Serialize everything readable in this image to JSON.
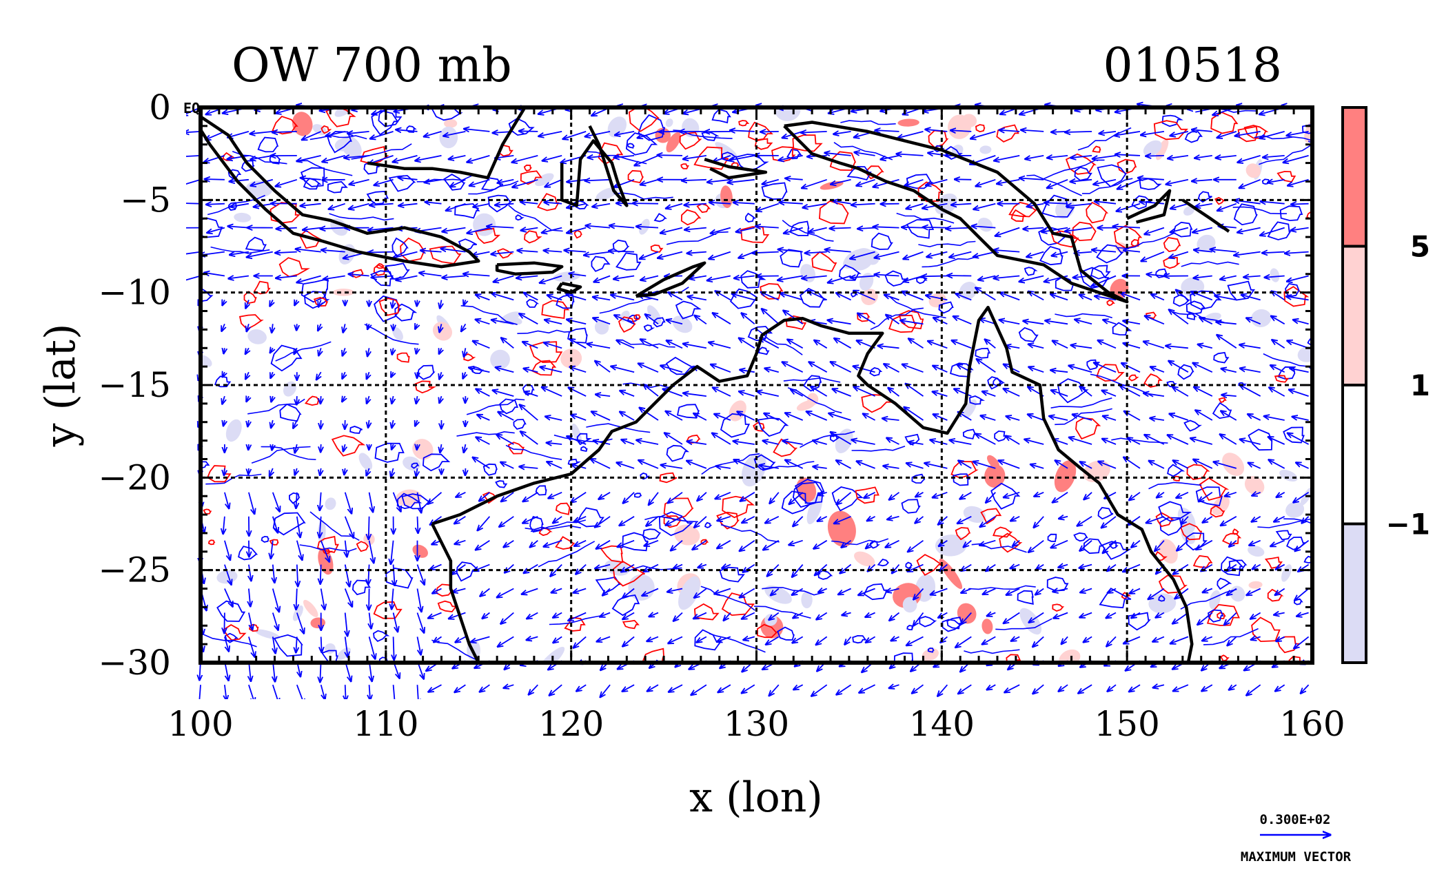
{
  "chart_data": {
    "type": "heatmap",
    "title": "OW 700 mb",
    "date_label": "010518",
    "corner_mark": "EQ",
    "xlabel": "x (lon)",
    "ylabel": "y (lat)",
    "xlim": [
      100,
      160
    ],
    "ylim": [
      -30,
      0
    ],
    "x_ticks": [
      100,
      110,
      120,
      130,
      140,
      150,
      160
    ],
    "y_ticks": [
      0,
      -5,
      -10,
      -15,
      -20,
      -25,
      -30
    ],
    "grid": true,
    "colorbar": {
      "levels": [
        -1,
        1,
        5
      ],
      "labels": [
        "5",
        "1",
        "−1"
      ],
      "colors": [
        "#ff8080",
        "#ffd2d2",
        "#ffffff",
        "#dcdcf5"
      ]
    },
    "contour_colors": {
      "positive": "#ff0000",
      "negative": "#0000ff",
      "coastline": "#000000",
      "vectors": "#0000ff"
    },
    "reference_vector": {
      "value_label": "0.300E+02",
      "caption": "MAXIMUM VECTOR"
    },
    "coastlines": [
      [
        [
          100,
          -0.5
        ],
        [
          101.5,
          -1.5
        ],
        [
          102.5,
          -3
        ],
        [
          104,
          -4.5
        ],
        [
          105.5,
          -5.8
        ],
        [
          107,
          -6.1
        ],
        [
          109,
          -6.8
        ],
        [
          111,
          -6.5
        ],
        [
          113,
          -7
        ],
        [
          114.5,
          -7.8
        ],
        [
          115,
          -8.3
        ],
        [
          113,
          -8.6
        ],
        [
          111,
          -8.3
        ],
        [
          108.5,
          -7.8
        ],
        [
          106.5,
          -7.2
        ],
        [
          105,
          -6.8
        ],
        [
          103.5,
          -5.5
        ],
        [
          102,
          -4
        ],
        [
          100.5,
          -2
        ],
        [
          100,
          -1.2
        ]
      ],
      [
        [
          116,
          -8.5
        ],
        [
          118,
          -8.4
        ],
        [
          119.5,
          -8.6
        ],
        [
          119,
          -8.9
        ],
        [
          117,
          -9
        ],
        [
          116,
          -8.8
        ],
        [
          116,
          -8.5
        ]
      ],
      [
        [
          119.5,
          -9.5
        ],
        [
          120.5,
          -9.7
        ],
        [
          120,
          -10
        ],
        [
          119.3,
          -9.8
        ],
        [
          119.5,
          -9.5
        ]
      ],
      [
        [
          123.5,
          -10.2
        ],
        [
          125,
          -9.3
        ],
        [
          126.6,
          -8.6
        ],
        [
          127.2,
          -8.4
        ],
        [
          126,
          -9.5
        ],
        [
          124.5,
          -10.1
        ],
        [
          123.5,
          -10.2
        ]
      ],
      [
        [
          109,
          -3
        ],
        [
          111,
          -3.3
        ],
        [
          112.5,
          -3.3
        ],
        [
          114,
          -3.5
        ],
        [
          115.5,
          -3.8
        ],
        [
          116.3,
          -2
        ],
        [
          117.5,
          0
        ]
      ],
      [
        [
          121,
          -1
        ],
        [
          121.5,
          -2
        ],
        [
          122.3,
          -4.5
        ],
        [
          123,
          -5.3
        ],
        [
          122.5,
          -4
        ],
        [
          122.2,
          -3
        ],
        [
          121.2,
          -1.8
        ],
        [
          120.5,
          -2.8
        ],
        [
          120.3,
          -5.3
        ],
        [
          119.5,
          -5
        ],
        [
          119.5,
          -3
        ]
      ],
      [
        [
          127.2,
          -2.8
        ],
        [
          128.5,
          -3.2
        ],
        [
          130.5,
          -3.5
        ],
        [
          128.5,
          -3.8
        ],
        [
          127.5,
          -3.3
        ]
      ],
      [
        [
          131.5,
          -1
        ],
        [
          133,
          -2.5
        ],
        [
          134.5,
          -3
        ],
        [
          135.5,
          -3.3
        ],
        [
          137,
          -4
        ],
        [
          138.5,
          -4.5
        ],
        [
          140,
          -5.5
        ],
        [
          141,
          -6
        ],
        [
          142,
          -7
        ],
        [
          143,
          -8
        ],
        [
          144,
          -8.2
        ],
        [
          145.5,
          -8.5
        ],
        [
          147,
          -9.5
        ],
        [
          148.5,
          -10
        ],
        [
          150,
          -10.5
        ],
        [
          149,
          -10
        ],
        [
          147.5,
          -8.8
        ],
        [
          147,
          -7
        ],
        [
          146,
          -6.8
        ],
        [
          145,
          -5.2
        ],
        [
          143,
          -3.5
        ],
        [
          141,
          -2.7
        ],
        [
          140,
          -2.3
        ],
        [
          138,
          -1.8
        ],
        [
          136,
          -1.3
        ],
        [
          133,
          -0.8
        ],
        [
          131.5,
          -1
        ]
      ],
      [
        [
          150,
          -6
        ],
        [
          151.5,
          -5.3
        ],
        [
          152.3,
          -4.5
        ],
        [
          152,
          -5.8
        ],
        [
          150.5,
          -6.2
        ]
      ],
      [
        [
          153,
          -5
        ],
        [
          154.5,
          -6
        ],
        [
          155.5,
          -6.7
        ]
      ],
      [
        [
          112.5,
          -22.5
        ],
        [
          113.5,
          -24.5
        ],
        [
          113.5,
          -26
        ],
        [
          114,
          -27.5
        ],
        [
          114.5,
          -29
        ],
        [
          115,
          -30
        ]
      ],
      [
        [
          112.5,
          -22.5
        ],
        [
          114,
          -22
        ],
        [
          116,
          -21
        ],
        [
          118,
          -20.3
        ],
        [
          120,
          -19.8
        ],
        [
          121.5,
          -18.5
        ],
        [
          122.2,
          -17.5
        ],
        [
          123.5,
          -17
        ],
        [
          124.5,
          -16
        ],
        [
          125.5,
          -15
        ],
        [
          126.8,
          -14
        ],
        [
          128,
          -14.8
        ],
        [
          129.5,
          -14.5
        ],
        [
          130,
          -13.3
        ],
        [
          130.3,
          -12.3
        ],
        [
          131.5,
          -11.5
        ],
        [
          132.5,
          -11.4
        ],
        [
          133.5,
          -11.8
        ],
        [
          135,
          -12.2
        ],
        [
          136.8,
          -12.2
        ],
        [
          136,
          -13.3
        ],
        [
          135.5,
          -14.5
        ],
        [
          136,
          -15
        ],
        [
          137.5,
          -16
        ],
        [
          139,
          -17.3
        ],
        [
          140.3,
          -17.6
        ],
        [
          141.3,
          -16
        ],
        [
          141.5,
          -14
        ],
        [
          142,
          -11.5
        ],
        [
          142.5,
          -10.8
        ],
        [
          143.5,
          -13
        ],
        [
          143.8,
          -14.3
        ],
        [
          145.3,
          -15
        ],
        [
          145.5,
          -16.8
        ],
        [
          146.3,
          -18.5
        ],
        [
          147.5,
          -19.5
        ],
        [
          148.5,
          -20.3
        ],
        [
          149.5,
          -22
        ],
        [
          150.8,
          -22.8
        ],
        [
          151.3,
          -24
        ],
        [
          152.5,
          -25.5
        ],
        [
          153.2,
          -27
        ],
        [
          153.5,
          -29
        ],
        [
          153.3,
          -30
        ]
      ]
    ]
  }
}
